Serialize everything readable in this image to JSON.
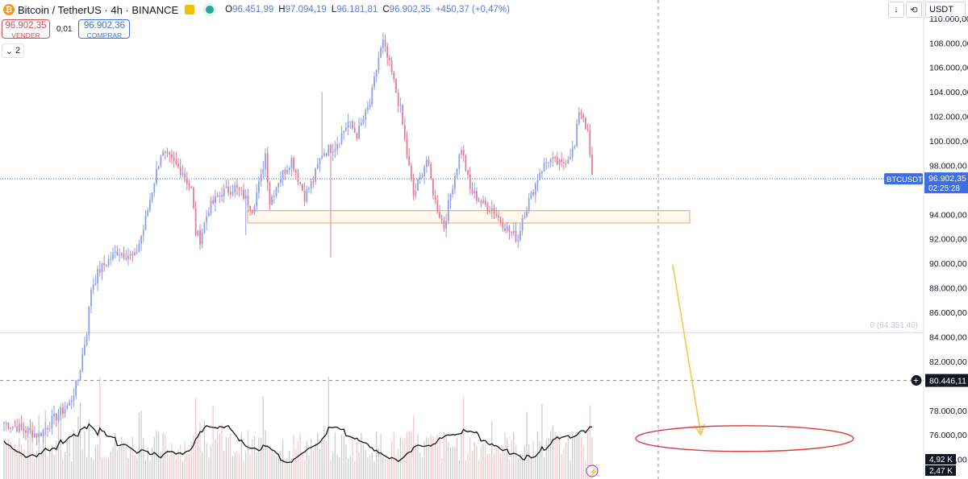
{
  "header": {
    "symbol_title": "Bitcoin / TetherUS · 4h · BINANCE",
    "logo_glyph": "₿",
    "ohlc": [
      {
        "key": "O",
        "value": "96.451,99"
      },
      {
        "key": "H",
        "value": "97.094,19"
      },
      {
        "key": "L",
        "value": "96.181,81"
      },
      {
        "key": "C",
        "value": "96.902,35"
      }
    ],
    "change": "+450,37 (+0,47%)"
  },
  "trade": {
    "sell_price": "96.902,35",
    "sell_label": "VENDER",
    "spread": "0,01",
    "buy_price": "96.902,36",
    "buy_label": "COMPRAR"
  },
  "indicator_toggle": {
    "count": "2"
  },
  "toolbar": {
    "currency": "USDT",
    "down_glyph": "↓",
    "reload_glyph": "⟲"
  },
  "colors": {
    "up": "#8ea0ec",
    "down": "#e47b92",
    "price_line": "#3c6ee6",
    "zone": "#f0a060",
    "arrow": "#f2c94c",
    "ellipse": "#d93c3c",
    "volume_ma": "#111111",
    "vol_up": "#bdbdbd",
    "vol_down": "#f3b8c3"
  },
  "chart_data": {
    "type": "candlestick",
    "timeframe": "4h",
    "y_axis": {
      "ticks": [
        "110.000,00",
        "108.000,00",
        "106.000,00",
        "104.000,00",
        "102.000,00",
        "100.000,00",
        "98.000,00",
        "94.000,00",
        "92.000,00",
        "90.000,00",
        "88.000,00",
        "86.000,00",
        "84.000,00",
        "82.000,00",
        "78.000,00",
        "76.000,00",
        "74.000,00"
      ],
      "tick_values": [
        110000,
        108000,
        106000,
        104000,
        102000,
        100000,
        98000,
        94000,
        92000,
        90000,
        88000,
        86000,
        84000,
        82000,
        78000,
        76000,
        74000
      ],
      "range": [
        72400,
        111500
      ]
    },
    "last_price": {
      "label": "BTCUSDT",
      "price": "96.902,35",
      "countdown": "02:25:28",
      "value": 96902.35
    },
    "crosshair": {
      "price": "80.446,11",
      "value": 80446.11
    },
    "support_zone": {
      "low": 93300,
      "high": 94300
    },
    "horizontal_line": {
      "label": "0 (84.351,40)",
      "value": 84351.4
    },
    "path_anchors": [
      [
        0,
        77000
      ],
      [
        8,
        76500
      ],
      [
        16,
        76000
      ],
      [
        24,
        77500
      ],
      [
        30,
        78500
      ],
      [
        34,
        80500
      ],
      [
        38,
        84500
      ],
      [
        40,
        88000
      ],
      [
        44,
        89500
      ],
      [
        52,
        91000
      ],
      [
        60,
        90500
      ],
      [
        64,
        92800
      ],
      [
        68,
        96000
      ],
      [
        72,
        99000
      ],
      [
        76,
        98500
      ],
      [
        82,
        97500
      ],
      [
        86,
        96000
      ],
      [
        88,
        92500
      ],
      [
        90,
        92000
      ],
      [
        94,
        94500
      ],
      [
        100,
        95800
      ],
      [
        106,
        96200
      ],
      [
        110,
        95500
      ],
      [
        114,
        94500
      ],
      [
        118,
        97000
      ],
      [
        120,
        99000
      ],
      [
        122,
        95000
      ],
      [
        126,
        96800
      ],
      [
        132,
        98500
      ],
      [
        138,
        95500
      ],
      [
        142,
        96800
      ],
      [
        146,
        99000
      ],
      [
        152,
        99600
      ],
      [
        158,
        101500
      ],
      [
        162,
        100500
      ],
      [
        168,
        103000
      ],
      [
        172,
        106800
      ],
      [
        174,
        108000
      ],
      [
        178,
        105500
      ],
      [
        182,
        102500
      ],
      [
        184,
        100000
      ],
      [
        188,
        95500
      ],
      [
        190,
        96500
      ],
      [
        194,
        98500
      ],
      [
        198,
        95000
      ],
      [
        202,
        93000
      ],
      [
        206,
        96500
      ],
      [
        210,
        99500
      ],
      [
        214,
        96000
      ],
      [
        220,
        94800
      ],
      [
        224,
        94500
      ],
      [
        228,
        93500
      ],
      [
        232,
        92600
      ],
      [
        236,
        92000
      ],
      [
        238,
        93800
      ],
      [
        242,
        95500
      ],
      [
        246,
        97500
      ],
      [
        250,
        98500
      ],
      [
        256,
        98000
      ],
      [
        262,
        99500
      ],
      [
        264,
        102500
      ],
      [
        266,
        102000
      ],
      [
        268,
        100500
      ],
      [
        270,
        97000
      ]
    ],
    "candle_count": 271,
    "volume_panel": {
      "labels": [
        "4,92 K",
        "2,47 K"
      ]
    },
    "annotations": [
      {
        "type": "arrow",
        "from": [
          307,
          89900
        ],
        "to": [
          320,
          76000
        ]
      },
      {
        "type": "ellipse",
        "center_x": 340,
        "center_y": 75700,
        "rx_bars": 50,
        "ry_price": 1050
      }
    ]
  }
}
